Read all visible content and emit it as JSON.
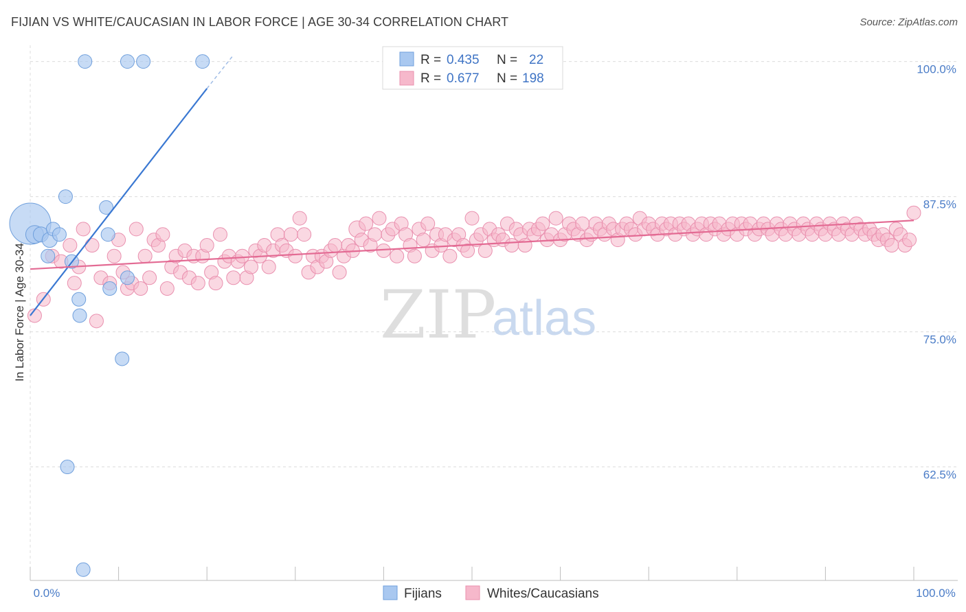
{
  "header": {
    "title": "FIJIAN VS WHITE/CAUCASIAN IN LABOR FORCE | AGE 30-34 CORRELATION CHART",
    "source": "Source: ZipAtlas.com"
  },
  "watermark": {
    "zip": "ZIP",
    "atlas": "atlas"
  },
  "legend_box": {
    "rows": [
      {
        "r_label": "R =",
        "r_value": "0.435",
        "n_label": "N =",
        "n_value": "22",
        "color": "#a9c8f0"
      },
      {
        "r_label": "R =",
        "r_value": "0.677",
        "n_label": "N =",
        "n_value": "198",
        "color": "#f6b8cb"
      }
    ]
  },
  "bottom_legend": [
    {
      "label": "Fijians",
      "color": "#a9c8f0"
    },
    {
      "label": "Whites/Caucasians",
      "color": "#f6b8cb"
    }
  ],
  "chart_data": {
    "type": "scatter",
    "title": "FIJIAN VS WHITE/CAUCASIAN IN LABOR FORCE | AGE 30-34 CORRELATION CHART",
    "ylabel": "In Labor Force | Age 30-34",
    "xlabel": "",
    "x_tick_labels": [
      "0.0%",
      "100.0%"
    ],
    "y_tick_labels": [
      "100.0%",
      "87.5%",
      "75.0%",
      "62.5%"
    ],
    "y_ticks": [
      100,
      87.5,
      75,
      62.5
    ],
    "xlim": [
      0,
      100
    ],
    "ylim": [
      52,
      101.5
    ],
    "grid": true,
    "legend_position": "top-center",
    "series": [
      {
        "name": "Fijians",
        "color": "#a9c8f0",
        "stroke": "#6f9fdc",
        "trend": {
          "x0": 0,
          "y0": 76.5,
          "x1": 20,
          "y1": 97.5,
          "dash_to_x": 23,
          "dash_to_y": 100.6,
          "color": "#3a78d2"
        },
        "points": [
          [
            0,
            85,
            30
          ],
          [
            0.5,
            84,
            13
          ],
          [
            1.2,
            84,
            11
          ],
          [
            2,
            82,
            10
          ],
          [
            2.2,
            83.5,
            11
          ],
          [
            2.6,
            84.5,
            10
          ],
          [
            3.3,
            84,
            10
          ],
          [
            4.2,
            62.5,
            10
          ],
          [
            4,
            87.5,
            10
          ],
          [
            4.7,
            81.5,
            10
          ],
          [
            5.5,
            78,
            10
          ],
          [
            5.6,
            76.5,
            10
          ],
          [
            6,
            53,
            10
          ],
          [
            6.2,
            100,
            10
          ],
          [
            8.8,
            84,
            10
          ],
          [
            8.6,
            86.5,
            10
          ],
          [
            9,
            79,
            10
          ],
          [
            10.4,
            72.5,
            10
          ],
          [
            11,
            80,
            10
          ],
          [
            11,
            100,
            10
          ],
          [
            12.8,
            100,
            10
          ],
          [
            19.5,
            100,
            10
          ]
        ]
      },
      {
        "name": "Whites/Caucasians",
        "color": "#f6b8cb",
        "stroke": "#e98fae",
        "trend": {
          "x0": 0,
          "y0": 80.8,
          "x1": 100,
          "y1": 85.3,
          "color": "#e36a93"
        },
        "points": [
          [
            0.5,
            76.5,
            10
          ],
          [
            1.5,
            78,
            10
          ],
          [
            2.5,
            82,
            10
          ],
          [
            3.5,
            81.5,
            10
          ],
          [
            4.5,
            83,
            10
          ],
          [
            5,
            79.5,
            10
          ],
          [
            5.5,
            81,
            10
          ],
          [
            6,
            84.5,
            10
          ],
          [
            7,
            83,
            10
          ],
          [
            7.5,
            76,
            10
          ],
          [
            8,
            80,
            10
          ],
          [
            9,
            79.5,
            10
          ],
          [
            9.5,
            82,
            10
          ],
          [
            10,
            83.5,
            10
          ],
          [
            10.5,
            80.5,
            10
          ],
          [
            11,
            79,
            10
          ],
          [
            11.5,
            79.5,
            10
          ],
          [
            12,
            84.5,
            10
          ],
          [
            12.5,
            79,
            10
          ],
          [
            13,
            82,
            10
          ],
          [
            13.5,
            80,
            10
          ],
          [
            14,
            83.5,
            10
          ],
          [
            14.5,
            83,
            10
          ],
          [
            15,
            84,
            10
          ],
          [
            15.5,
            79,
            10
          ],
          [
            16,
            81,
            10
          ],
          [
            16.5,
            82,
            10
          ],
          [
            17,
            80.5,
            10
          ],
          [
            17.5,
            82.5,
            10
          ],
          [
            18,
            80,
            10
          ],
          [
            18.5,
            82,
            10
          ],
          [
            19,
            79.5,
            10
          ],
          [
            19.5,
            82,
            10
          ],
          [
            20,
            83,
            10
          ],
          [
            20.5,
            80.5,
            10
          ],
          [
            21,
            79.5,
            10
          ],
          [
            21.5,
            84,
            10
          ],
          [
            22,
            81.5,
            10
          ],
          [
            22.5,
            82,
            10
          ],
          [
            23,
            80,
            10
          ],
          [
            23.5,
            81.5,
            10
          ],
          [
            24,
            82,
            10
          ],
          [
            24.5,
            80,
            10
          ],
          [
            25,
            81,
            10
          ],
          [
            25.5,
            82.5,
            10
          ],
          [
            26,
            82,
            10
          ],
          [
            26.5,
            83,
            10
          ],
          [
            27,
            81,
            10
          ],
          [
            27.5,
            82.5,
            10
          ],
          [
            28,
            84,
            10
          ],
          [
            28.5,
            83,
            10
          ],
          [
            29,
            82.5,
            10
          ],
          [
            29.5,
            84,
            10
          ],
          [
            30,
            82,
            10
          ],
          [
            30.5,
            85.5,
            10
          ],
          [
            31,
            84,
            10
          ],
          [
            31.5,
            80.5,
            10
          ],
          [
            32,
            82,
            10
          ],
          [
            32.5,
            81,
            10
          ],
          [
            33,
            82,
            10
          ],
          [
            33.5,
            81.5,
            10
          ],
          [
            34,
            82.5,
            10
          ],
          [
            34.5,
            83,
            10
          ],
          [
            35,
            80.5,
            10
          ],
          [
            35.5,
            82,
            10
          ],
          [
            36,
            83,
            10
          ],
          [
            36.5,
            82.5,
            10
          ],
          [
            37,
            84.5,
            12
          ],
          [
            37.5,
            83.5,
            10
          ],
          [
            38,
            85,
            10
          ],
          [
            38.5,
            83,
            10
          ],
          [
            39,
            84,
            10
          ],
          [
            39.5,
            85.5,
            10
          ],
          [
            40,
            82.5,
            10
          ],
          [
            40.5,
            84,
            10
          ],
          [
            41,
            84.5,
            10
          ],
          [
            41.5,
            82,
            10
          ],
          [
            42,
            85,
            10
          ],
          [
            42.5,
            84,
            10
          ],
          [
            43,
            83,
            10
          ],
          [
            43.5,
            82,
            10
          ],
          [
            44,
            84.5,
            10
          ],
          [
            44.5,
            83.5,
            10
          ],
          [
            45,
            85,
            10
          ],
          [
            45.5,
            82.5,
            10
          ],
          [
            46,
            84,
            10
          ],
          [
            46.5,
            83,
            10
          ],
          [
            47,
            84,
            10
          ],
          [
            47.5,
            82,
            10
          ],
          [
            48,
            83.5,
            10
          ],
          [
            48.5,
            84,
            10
          ],
          [
            49,
            83,
            10
          ],
          [
            49.5,
            82.5,
            10
          ],
          [
            50,
            85.5,
            10
          ],
          [
            50.5,
            83.5,
            10
          ],
          [
            51,
            84,
            10
          ],
          [
            51.5,
            82.5,
            10
          ],
          [
            52,
            84.5,
            10
          ],
          [
            52.5,
            83.5,
            10
          ],
          [
            53,
            84,
            10
          ],
          [
            53.5,
            83.5,
            10
          ],
          [
            54,
            85,
            10
          ],
          [
            54.5,
            83,
            10
          ],
          [
            55,
            84.5,
            10
          ],
          [
            55.5,
            84,
            10
          ],
          [
            56,
            83,
            10
          ],
          [
            56.5,
            84.5,
            10
          ],
          [
            57,
            84,
            10
          ],
          [
            57.5,
            84.5,
            10
          ],
          [
            58,
            85,
            10
          ],
          [
            58.5,
            83.5,
            10
          ],
          [
            59,
            84,
            10
          ],
          [
            59.5,
            85.5,
            10
          ],
          [
            60,
            83.5,
            10
          ],
          [
            60.5,
            84,
            10
          ],
          [
            61,
            85,
            10
          ],
          [
            61.5,
            84.5,
            10
          ],
          [
            62,
            84,
            10
          ],
          [
            62.5,
            85,
            10
          ],
          [
            63,
            83.5,
            10
          ],
          [
            63.5,
            84,
            10
          ],
          [
            64,
            85,
            10
          ],
          [
            64.5,
            84.5,
            10
          ],
          [
            65,
            84,
            10
          ],
          [
            65.5,
            85,
            10
          ],
          [
            66,
            84.5,
            10
          ],
          [
            66.5,
            83.5,
            10
          ],
          [
            67,
            84.5,
            10
          ],
          [
            67.5,
            85,
            10
          ],
          [
            68,
            84.5,
            10
          ],
          [
            68.5,
            84,
            10
          ],
          [
            69,
            85.5,
            10
          ],
          [
            69.5,
            84.5,
            10
          ],
          [
            70,
            85,
            10
          ],
          [
            70.5,
            84.5,
            10
          ],
          [
            71,
            84,
            10
          ],
          [
            71.5,
            85,
            10
          ],
          [
            72,
            84.5,
            10
          ],
          [
            72.5,
            85,
            10
          ],
          [
            73,
            84,
            10
          ],
          [
            73.5,
            85,
            10
          ],
          [
            74,
            84.5,
            10
          ],
          [
            74.5,
            85,
            10
          ],
          [
            75,
            84,
            10
          ],
          [
            75.5,
            84.5,
            10
          ],
          [
            76,
            85,
            10
          ],
          [
            76.5,
            84,
            10
          ],
          [
            77,
            85,
            10
          ],
          [
            77.5,
            84.5,
            10
          ],
          [
            78,
            85,
            10
          ],
          [
            78.5,
            84,
            10
          ],
          [
            79,
            84.5,
            10
          ],
          [
            79.5,
            85,
            10
          ],
          [
            80,
            84,
            10
          ],
          [
            80.5,
            85,
            10
          ],
          [
            81,
            84.5,
            10
          ],
          [
            81.5,
            85,
            10
          ],
          [
            82,
            84,
            10
          ],
          [
            82.5,
            84.5,
            10
          ],
          [
            83,
            85,
            10
          ],
          [
            83.5,
            84.5,
            10
          ],
          [
            84,
            84,
            10
          ],
          [
            84.5,
            85,
            10
          ],
          [
            85,
            84.5,
            10
          ],
          [
            85.5,
            84,
            10
          ],
          [
            86,
            85,
            10
          ],
          [
            86.5,
            84.5,
            10
          ],
          [
            87,
            84,
            10
          ],
          [
            87.5,
            85,
            10
          ],
          [
            88,
            84.5,
            10
          ],
          [
            88.5,
            84,
            10
          ],
          [
            89,
            85,
            10
          ],
          [
            89.5,
            84.5,
            10
          ],
          [
            90,
            84,
            10
          ],
          [
            90.5,
            85,
            10
          ],
          [
            91,
            84.5,
            10
          ],
          [
            91.5,
            84,
            10
          ],
          [
            92,
            85,
            10
          ],
          [
            92.5,
            84.5,
            10
          ],
          [
            93,
            84,
            10
          ],
          [
            93.5,
            85,
            10
          ],
          [
            94,
            84.5,
            10
          ],
          [
            94.5,
            84,
            10
          ],
          [
            95,
            84.5,
            10
          ],
          [
            95.5,
            84,
            10
          ],
          [
            96,
            83.5,
            10
          ],
          [
            96.5,
            84,
            10
          ],
          [
            97,
            83.5,
            10
          ],
          [
            97.5,
            83,
            10
          ],
          [
            98,
            84.5,
            10
          ],
          [
            98.5,
            84,
            10
          ],
          [
            99,
            83,
            10
          ],
          [
            99.5,
            83.5,
            10
          ],
          [
            100,
            86,
            10
          ]
        ]
      }
    ]
  }
}
